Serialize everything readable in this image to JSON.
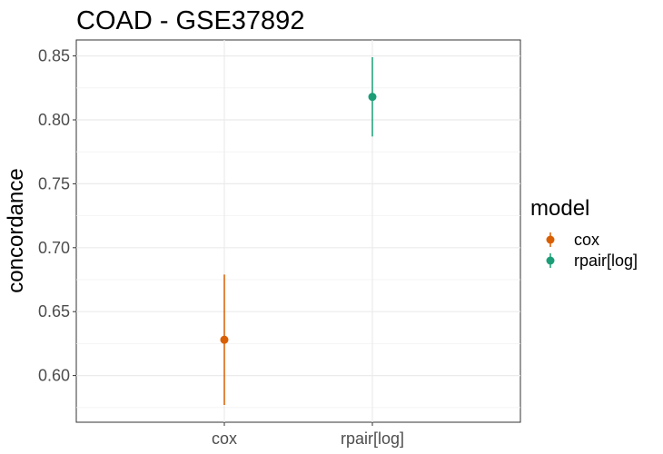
{
  "chart_data": {
    "type": "pointrange",
    "title": "COAD - GSE37892",
    "xlabel": "",
    "ylabel": "concordance",
    "categories": [
      "cox",
      "rpair[log]"
    ],
    "ylim": [
      0.5635,
      0.8625
    ],
    "yticks": [
      "0.60",
      "0.65",
      "0.70",
      "0.75",
      "0.80",
      "0.85"
    ],
    "grid": true,
    "legend": {
      "title": "model",
      "position": "right",
      "entries": [
        "cox",
        "rpair[log]"
      ]
    },
    "series": [
      {
        "name": "cox",
        "category": "cox",
        "value": 0.628,
        "lower": 0.577,
        "upper": 0.679,
        "color": "#D95F02"
      },
      {
        "name": "rpair[log]",
        "category": "rpair[log]",
        "value": 0.818,
        "lower": 0.787,
        "upper": 0.849,
        "color": "#1B9E77"
      }
    ]
  }
}
